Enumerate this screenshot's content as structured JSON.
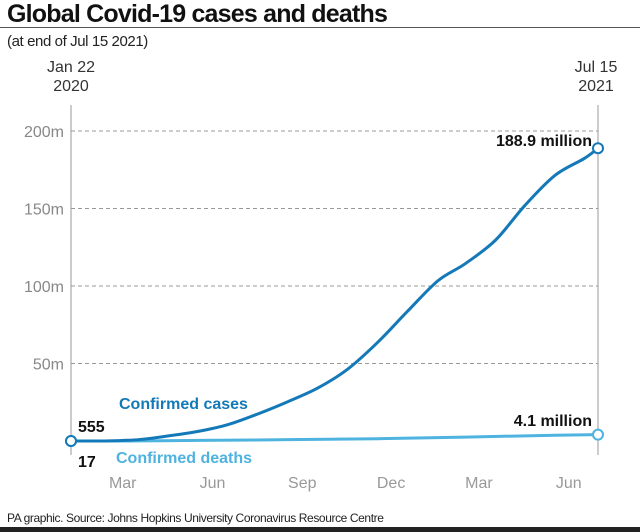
{
  "title": "Global Covid-19 cases and deaths",
  "subtitle": "(at end of Jul 15 2021)",
  "source": "PA graphic. Source: Johns Hopkins University Coronavirus Resource Centre",
  "chart_data": {
    "type": "line",
    "x_start_label": [
      "Jan 22",
      "2020"
    ],
    "x_end_label": [
      "Jul 15",
      "2021"
    ],
    "x_range": [
      "2020-01-22",
      "2021-07-15"
    ],
    "x_ticks": [
      {
        "date": "2020-03-15",
        "label": "Mar"
      },
      {
        "date": "2020-06-15",
        "label": "Jun"
      },
      {
        "date": "2020-09-15",
        "label": "Sep"
      },
      {
        "date": "2020-12-15",
        "label": "Dec"
      },
      {
        "date": "2021-03-15",
        "label": "Mar"
      },
      {
        "date": "2021-06-15",
        "label": "Jun"
      }
    ],
    "y_ticks": [
      {
        "value": 50000000,
        "label": "50m"
      },
      {
        "value": 100000000,
        "label": "100m"
      },
      {
        "value": 150000000,
        "label": "150m"
      },
      {
        "value": 200000000,
        "label": "200m"
      }
    ],
    "ylim": [
      0,
      200000000
    ],
    "grid": "horizontal dashed",
    "series": [
      {
        "name": "Confirmed cases",
        "color": "#1479b8",
        "start_label": "555",
        "end_label": "188.9 million",
        "points": [
          [
            "2020-01-22",
            555
          ],
          [
            "2020-03-01",
            88000
          ],
          [
            "2020-04-01",
            930000
          ],
          [
            "2020-05-01",
            3300000
          ],
          [
            "2020-06-01",
            6300000
          ],
          [
            "2020-07-01",
            10600000
          ],
          [
            "2020-08-01",
            17600000
          ],
          [
            "2020-09-01",
            25600000
          ],
          [
            "2020-10-01",
            34200000
          ],
          [
            "2020-11-01",
            46600000
          ],
          [
            "2020-12-01",
            63500000
          ],
          [
            "2021-01-01",
            83800000
          ],
          [
            "2021-02-01",
            103400000
          ],
          [
            "2021-03-01",
            114400000
          ],
          [
            "2021-04-01",
            129600000
          ],
          [
            "2021-05-01",
            151900000
          ],
          [
            "2021-06-01",
            171400000
          ],
          [
            "2021-07-01",
            182300000
          ],
          [
            "2021-07-15",
            188900000
          ]
        ]
      },
      {
        "name": "Confirmed deaths",
        "color": "#4fb3e0",
        "start_label": "17",
        "end_label": "4.1 million",
        "points": [
          [
            "2020-01-22",
            17
          ],
          [
            "2020-04-01",
            47000
          ],
          [
            "2020-06-01",
            375000
          ],
          [
            "2020-09-01",
            850000
          ],
          [
            "2020-12-01",
            1470000
          ],
          [
            "2021-03-01",
            2540000
          ],
          [
            "2021-06-01",
            3700000
          ],
          [
            "2021-07-15",
            4100000
          ]
        ]
      }
    ]
  }
}
